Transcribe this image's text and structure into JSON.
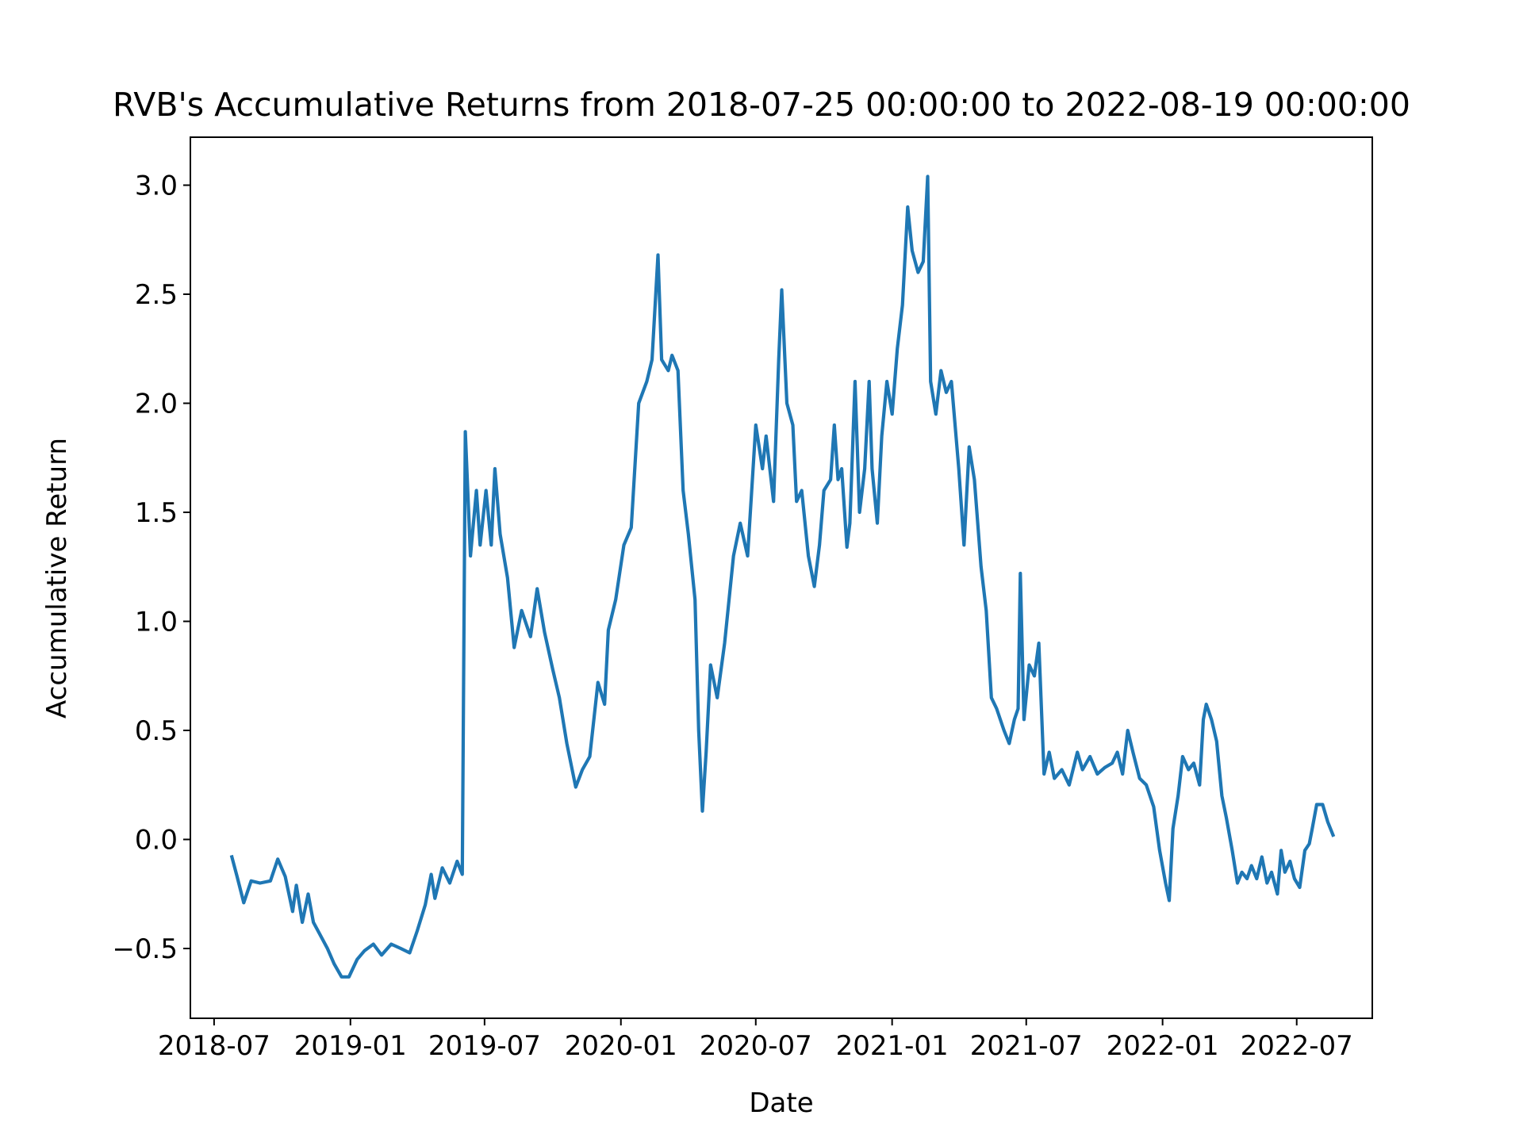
{
  "chart_data": {
    "type": "line",
    "title": "RVB's Accumulative Returns from 2018-07-25 00:00:00 to 2022-08-19 00:00:00",
    "xlabel": "Date",
    "ylabel": "Accumulative Return",
    "xlim": [
      "2018-05-30",
      "2022-10-11"
    ],
    "ylim": [
      -0.82,
      3.22
    ],
    "x_ticks": [
      {
        "date": "2018-07-01",
        "label": "2018-07"
      },
      {
        "date": "2019-01-01",
        "label": "2019-01"
      },
      {
        "date": "2019-07-01",
        "label": "2019-07"
      },
      {
        "date": "2020-01-01",
        "label": "2020-01"
      },
      {
        "date": "2020-07-01",
        "label": "2020-07"
      },
      {
        "date": "2021-01-01",
        "label": "2021-01"
      },
      {
        "date": "2021-07-01",
        "label": "2021-07"
      },
      {
        "date": "2022-01-01",
        "label": "2022-01"
      },
      {
        "date": "2022-07-01",
        "label": "2022-07"
      }
    ],
    "y_ticks": [
      {
        "value": -0.5,
        "label": "−0.5"
      },
      {
        "value": 0.0,
        "label": "0.0"
      },
      {
        "value": 0.5,
        "label": "0.5"
      },
      {
        "value": 1.0,
        "label": "1.0"
      },
      {
        "value": 1.5,
        "label": "1.5"
      },
      {
        "value": 2.0,
        "label": "2.0"
      },
      {
        "value": 2.5,
        "label": "2.5"
      },
      {
        "value": 3.0,
        "label": "3.0"
      }
    ],
    "grid": false,
    "line_color": "#1f77b4",
    "series": [
      {
        "points": [
          [
            "2018-07-25",
            -0.08
          ],
          [
            "2018-08-01",
            -0.17
          ],
          [
            "2018-08-10",
            -0.29
          ],
          [
            "2018-08-20",
            -0.19
          ],
          [
            "2018-09-01",
            -0.2
          ],
          [
            "2018-09-15",
            -0.19
          ],
          [
            "2018-09-25",
            -0.09
          ],
          [
            "2018-10-05",
            -0.17
          ],
          [
            "2018-10-15",
            -0.33
          ],
          [
            "2018-10-20",
            -0.21
          ],
          [
            "2018-10-28",
            -0.38
          ],
          [
            "2018-11-05",
            -0.25
          ],
          [
            "2018-11-12",
            -0.38
          ],
          [
            "2018-11-20",
            -0.43
          ],
          [
            "2018-12-01",
            -0.5
          ],
          [
            "2018-12-10",
            -0.57
          ],
          [
            "2018-12-20",
            -0.63
          ],
          [
            "2018-12-30",
            -0.63
          ],
          [
            "2019-01-10",
            -0.55
          ],
          [
            "2019-01-20",
            -0.51
          ],
          [
            "2019-02-01",
            -0.48
          ],
          [
            "2019-02-12",
            -0.53
          ],
          [
            "2019-02-25",
            -0.48
          ],
          [
            "2019-03-10",
            -0.5
          ],
          [
            "2019-03-22",
            -0.52
          ],
          [
            "2019-04-01",
            -0.42
          ],
          [
            "2019-04-12",
            -0.3
          ],
          [
            "2019-04-20",
            -0.16
          ],
          [
            "2019-04-25",
            -0.27
          ],
          [
            "2019-05-05",
            -0.13
          ],
          [
            "2019-05-15",
            -0.2
          ],
          [
            "2019-05-25",
            -0.1
          ],
          [
            "2019-06-01",
            -0.16
          ],
          [
            "2019-06-05",
            1.87
          ],
          [
            "2019-06-12",
            1.3
          ],
          [
            "2019-06-20",
            1.6
          ],
          [
            "2019-06-25",
            1.35
          ],
          [
            "2019-07-03",
            1.6
          ],
          [
            "2019-07-10",
            1.35
          ],
          [
            "2019-07-15",
            1.7
          ],
          [
            "2019-07-22",
            1.4
          ],
          [
            "2019-08-01",
            1.2
          ],
          [
            "2019-08-10",
            0.88
          ],
          [
            "2019-08-20",
            1.05
          ],
          [
            "2019-09-01",
            0.93
          ],
          [
            "2019-09-10",
            1.15
          ],
          [
            "2019-09-20",
            0.95
          ],
          [
            "2019-10-01",
            0.78
          ],
          [
            "2019-10-10",
            0.65
          ],
          [
            "2019-10-20",
            0.44
          ],
          [
            "2019-11-01",
            0.24
          ],
          [
            "2019-11-10",
            0.32
          ],
          [
            "2019-11-20",
            0.38
          ],
          [
            "2019-12-01",
            0.72
          ],
          [
            "2019-12-10",
            0.62
          ],
          [
            "2019-12-15",
            0.96
          ],
          [
            "2019-12-25",
            1.1
          ],
          [
            "2020-01-05",
            1.35
          ],
          [
            "2020-01-15",
            1.43
          ],
          [
            "2020-01-25",
            2.0
          ],
          [
            "2020-02-05",
            2.1
          ],
          [
            "2020-02-12",
            2.2
          ],
          [
            "2020-02-20",
            2.68
          ],
          [
            "2020-02-25",
            2.2
          ],
          [
            "2020-03-05",
            2.15
          ],
          [
            "2020-03-10",
            2.22
          ],
          [
            "2020-03-18",
            2.15
          ],
          [
            "2020-03-25",
            1.6
          ],
          [
            "2020-04-01",
            1.4
          ],
          [
            "2020-04-10",
            1.1
          ],
          [
            "2020-04-15",
            0.5
          ],
          [
            "2020-04-20",
            0.13
          ],
          [
            "2020-04-25",
            0.4
          ],
          [
            "2020-05-01",
            0.8
          ],
          [
            "2020-05-10",
            0.65
          ],
          [
            "2020-05-20",
            0.9
          ],
          [
            "2020-06-01",
            1.3
          ],
          [
            "2020-06-10",
            1.45
          ],
          [
            "2020-06-20",
            1.3
          ],
          [
            "2020-07-01",
            1.9
          ],
          [
            "2020-07-10",
            1.7
          ],
          [
            "2020-07-15",
            1.85
          ],
          [
            "2020-07-25",
            1.55
          ],
          [
            "2020-08-01",
            2.2
          ],
          [
            "2020-08-05",
            2.52
          ],
          [
            "2020-08-12",
            2.0
          ],
          [
            "2020-08-20",
            1.9
          ],
          [
            "2020-08-25",
            1.55
          ],
          [
            "2020-09-01",
            1.6
          ],
          [
            "2020-09-10",
            1.3
          ],
          [
            "2020-09-18",
            1.16
          ],
          [
            "2020-09-25",
            1.35
          ],
          [
            "2020-10-01",
            1.6
          ],
          [
            "2020-10-10",
            1.65
          ],
          [
            "2020-10-15",
            1.9
          ],
          [
            "2020-10-20",
            1.65
          ],
          [
            "2020-10-25",
            1.7
          ],
          [
            "2020-11-01",
            1.34
          ],
          [
            "2020-11-05",
            1.45
          ],
          [
            "2020-11-12",
            2.1
          ],
          [
            "2020-11-18",
            1.5
          ],
          [
            "2020-11-25",
            1.7
          ],
          [
            "2020-12-01",
            2.1
          ],
          [
            "2020-12-05",
            1.7
          ],
          [
            "2020-12-12",
            1.45
          ],
          [
            "2020-12-18",
            1.85
          ],
          [
            "2020-12-25",
            2.1
          ],
          [
            "2021-01-01",
            1.95
          ],
          [
            "2021-01-08",
            2.25
          ],
          [
            "2021-01-15",
            2.45
          ],
          [
            "2021-01-22",
            2.9
          ],
          [
            "2021-01-28",
            2.7
          ],
          [
            "2021-02-05",
            2.6
          ],
          [
            "2021-02-12",
            2.65
          ],
          [
            "2021-02-18",
            3.04
          ],
          [
            "2021-02-22",
            2.1
          ],
          [
            "2021-03-01",
            1.95
          ],
          [
            "2021-03-08",
            2.15
          ],
          [
            "2021-03-15",
            2.05
          ],
          [
            "2021-03-22",
            2.1
          ],
          [
            "2021-04-01",
            1.7
          ],
          [
            "2021-04-08",
            1.35
          ],
          [
            "2021-04-15",
            1.8
          ],
          [
            "2021-04-22",
            1.65
          ],
          [
            "2021-05-01",
            1.25
          ],
          [
            "2021-05-08",
            1.05
          ],
          [
            "2021-05-15",
            0.65
          ],
          [
            "2021-05-22",
            0.6
          ],
          [
            "2021-06-01",
            0.5
          ],
          [
            "2021-06-08",
            0.44
          ],
          [
            "2021-06-15",
            0.55
          ],
          [
            "2021-06-20",
            0.6
          ],
          [
            "2021-06-23",
            1.22
          ],
          [
            "2021-06-28",
            0.55
          ],
          [
            "2021-07-05",
            0.8
          ],
          [
            "2021-07-12",
            0.75
          ],
          [
            "2021-07-18",
            0.9
          ],
          [
            "2021-07-25",
            0.3
          ],
          [
            "2021-08-01",
            0.4
          ],
          [
            "2021-08-08",
            0.28
          ],
          [
            "2021-08-18",
            0.32
          ],
          [
            "2021-08-28",
            0.25
          ],
          [
            "2021-09-08",
            0.4
          ],
          [
            "2021-09-15",
            0.32
          ],
          [
            "2021-09-25",
            0.38
          ],
          [
            "2021-10-05",
            0.3
          ],
          [
            "2021-10-15",
            0.33
          ],
          [
            "2021-10-25",
            0.35
          ],
          [
            "2021-11-01",
            0.4
          ],
          [
            "2021-11-08",
            0.3
          ],
          [
            "2021-11-15",
            0.5
          ],
          [
            "2021-11-22",
            0.4
          ],
          [
            "2021-12-01",
            0.28
          ],
          [
            "2021-12-10",
            0.25
          ],
          [
            "2021-12-20",
            0.15
          ],
          [
            "2021-12-28",
            -0.05
          ],
          [
            "2022-01-05",
            -0.2
          ],
          [
            "2022-01-10",
            -0.28
          ],
          [
            "2022-01-15",
            0.05
          ],
          [
            "2022-01-22",
            0.2
          ],
          [
            "2022-01-28",
            0.38
          ],
          [
            "2022-02-05",
            0.32
          ],
          [
            "2022-02-12",
            0.35
          ],
          [
            "2022-02-20",
            0.25
          ],
          [
            "2022-02-25",
            0.55
          ],
          [
            "2022-03-01",
            0.62
          ],
          [
            "2022-03-08",
            0.55
          ],
          [
            "2022-03-15",
            0.45
          ],
          [
            "2022-03-22",
            0.2
          ],
          [
            "2022-03-28",
            0.1
          ],
          [
            "2022-04-05",
            -0.05
          ],
          [
            "2022-04-12",
            -0.2
          ],
          [
            "2022-04-18",
            -0.15
          ],
          [
            "2022-04-25",
            -0.18
          ],
          [
            "2022-05-01",
            -0.12
          ],
          [
            "2022-05-08",
            -0.18
          ],
          [
            "2022-05-15",
            -0.08
          ],
          [
            "2022-05-22",
            -0.2
          ],
          [
            "2022-05-28",
            -0.15
          ],
          [
            "2022-06-05",
            -0.25
          ],
          [
            "2022-06-10",
            -0.05
          ],
          [
            "2022-06-15",
            -0.15
          ],
          [
            "2022-06-22",
            -0.1
          ],
          [
            "2022-06-28",
            -0.18
          ],
          [
            "2022-07-05",
            -0.22
          ],
          [
            "2022-07-12",
            -0.05
          ],
          [
            "2022-07-18",
            -0.02
          ],
          [
            "2022-07-22",
            0.05
          ],
          [
            "2022-07-28",
            0.16
          ],
          [
            "2022-08-05",
            0.16
          ],
          [
            "2022-08-12",
            0.08
          ],
          [
            "2022-08-19",
            0.02
          ]
        ]
      }
    ]
  }
}
